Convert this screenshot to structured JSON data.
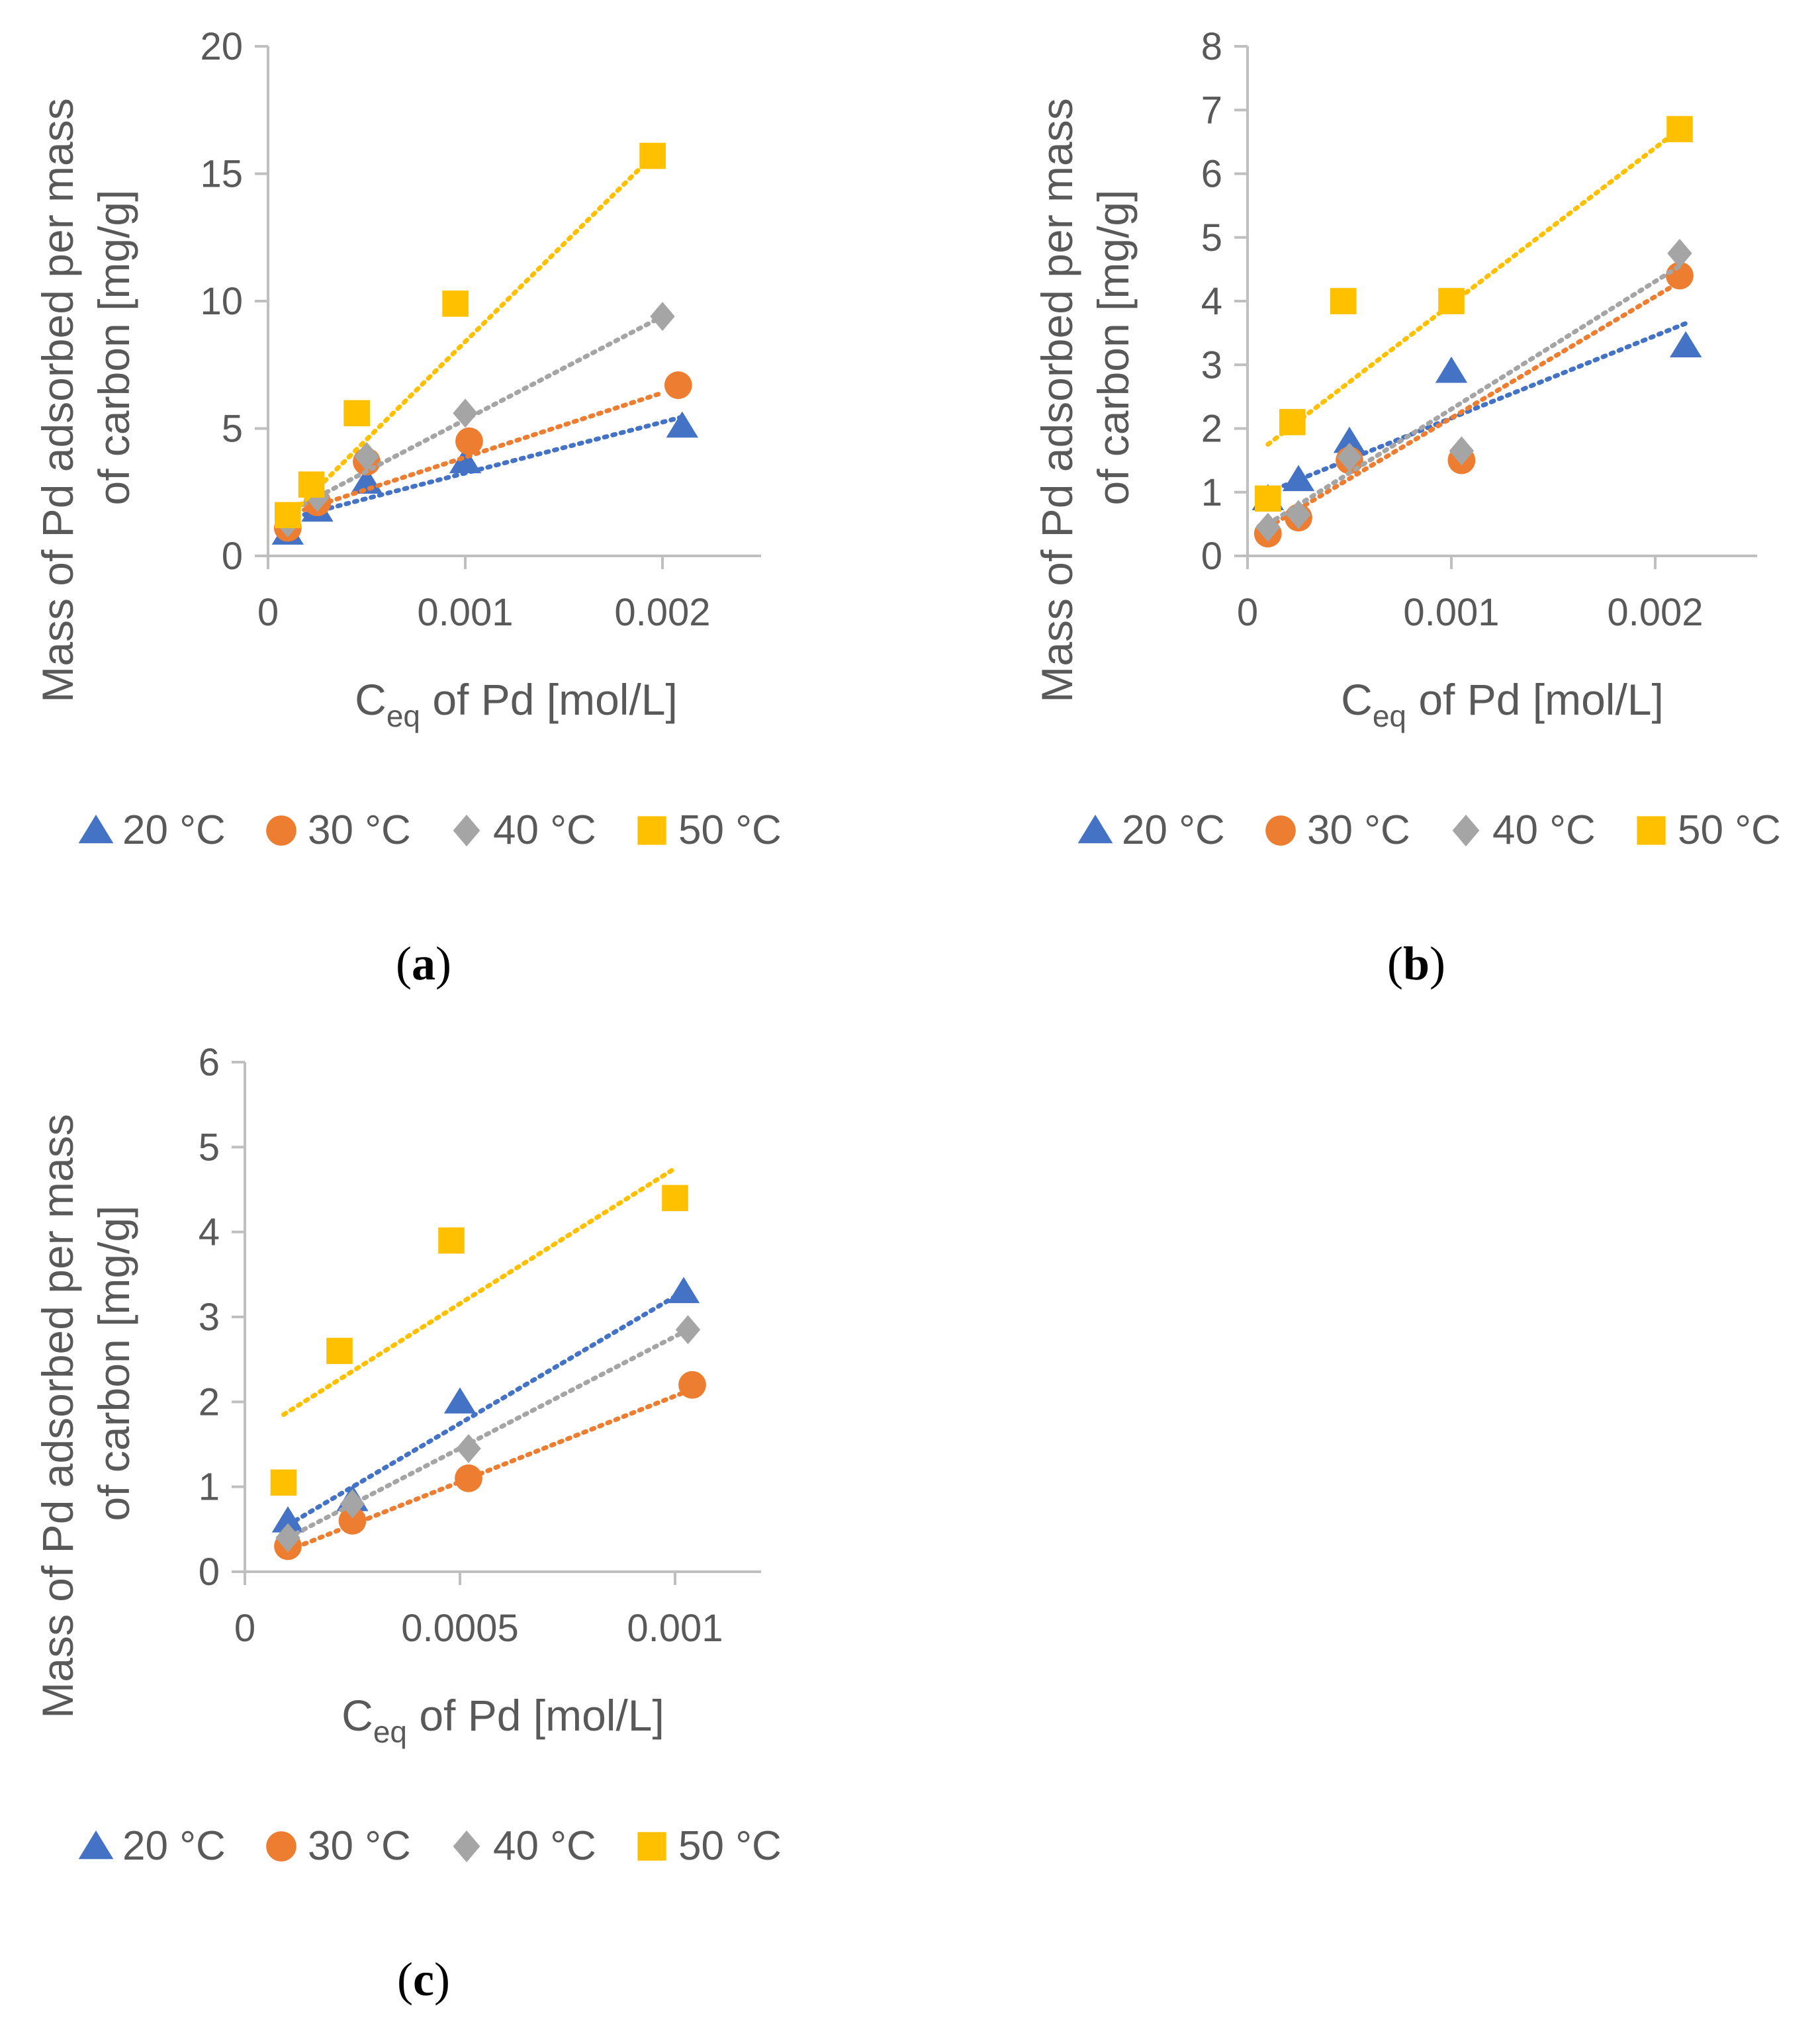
{
  "series_colors": {
    "20 °C": "#4472C4",
    "30 °C": "#ED7D31",
    "40 °C": "#A5A5A5",
    "50 °C": "#FFC000"
  },
  "series_markers": {
    "20 °C": "triangle",
    "30 °C": "circle",
    "40 °C": "diamond",
    "50 °C": "square"
  },
  "chart_data": [
    {
      "id": "a",
      "panel_label": "a",
      "type": "scatter",
      "xlabel_main": "C",
      "xlabel_sub": "eq",
      "xlabel_rest": " of Pd [mol/L]",
      "ylabel_line1": "Mass of Pd adsorbed per mass",
      "ylabel_line2": "of carbon [mg/g]",
      "xlim": [
        0,
        0.0025
      ],
      "ylim": [
        0,
        20
      ],
      "xticks": [
        0,
        0.001,
        0.002
      ],
      "xtick_labels": [
        "0",
        "0.001",
        "0.002"
      ],
      "yticks": [
        0,
        5,
        10,
        15,
        20
      ],
      "ytick_labels": [
        "0",
        "5",
        "10",
        "15",
        "20"
      ],
      "legend": [
        "20 °C",
        "30 °C",
        "40 °C",
        "50 °C"
      ],
      "series": [
        {
          "name": "20 °C",
          "x": [
            0.0001,
            0.00025,
            0.0005,
            0.001,
            0.0021
          ],
          "y": [
            0.9,
            1.8,
            2.9,
            3.7,
            5.1
          ],
          "trend": [
            0.0001,
            1.45,
            0.0021,
            5.45
          ]
        },
        {
          "name": "30 °C",
          "x": [
            0.0001,
            0.00025,
            0.0005,
            0.00102,
            0.00208
          ],
          "y": [
            1.1,
            2.1,
            3.7,
            4.5,
            6.7
          ],
          "trend": [
            0.0001,
            1.6,
            0.002,
            6.4
          ]
        },
        {
          "name": "40 °C",
          "x": [
            0.0001,
            0.00025,
            0.0005,
            0.001,
            0.002
          ],
          "y": [
            1.3,
            2.3,
            3.9,
            5.6,
            9.4
          ],
          "trend": [
            0.0001,
            1.7,
            0.002,
            9.4
          ]
        },
        {
          "name": "50 °C",
          "x": [
            0.0001,
            0.00022,
            0.00045,
            0.00095,
            0.00195
          ],
          "y": [
            1.6,
            2.8,
            5.6,
            9.9,
            15.7
          ],
          "trend": [
            0.0001,
            1.5,
            0.00195,
            15.7
          ]
        }
      ]
    },
    {
      "id": "b",
      "panel_label": "b",
      "type": "scatter",
      "xlabel_main": "C",
      "xlabel_sub": "eq",
      "xlabel_rest": " of Pd [mol/L]",
      "ylabel_line1": "Mass of Pd adsorbed per mass",
      "ylabel_line2": "of carbon [mg/g]",
      "xlim": [
        0,
        0.0025
      ],
      "ylim": [
        0,
        8
      ],
      "xticks": [
        0,
        0.001,
        0.002
      ],
      "xtick_labels": [
        "0",
        "0.001",
        "0.002"
      ],
      "yticks": [
        0,
        1,
        2,
        3,
        4,
        5,
        6,
        7,
        8
      ],
      "ytick_labels": [
        "0",
        "1",
        "2",
        "3",
        "4",
        "5",
        "6",
        "7",
        "8"
      ],
      "legend": [
        "20 °C",
        "30 °C",
        "40 °C",
        "50 °C"
      ],
      "series": [
        {
          "name": "20 °C",
          "x": [
            0.0001,
            0.00025,
            0.0005,
            0.001,
            0.00215
          ],
          "y": [
            0.9,
            1.2,
            1.8,
            2.9,
            3.3
          ],
          "trend": [
            0.0001,
            1.0,
            0.00215,
            3.65
          ]
        },
        {
          "name": "30 °C",
          "x": [
            0.0001,
            0.00025,
            0.0005,
            0.00105,
            0.00212
          ],
          "y": [
            0.35,
            0.6,
            1.5,
            1.5,
            4.4
          ],
          "trend": [
            0.0001,
            0.45,
            0.00212,
            4.3
          ]
        },
        {
          "name": "40 °C",
          "x": [
            0.0001,
            0.00025,
            0.0005,
            0.00105,
            0.00212
          ],
          "y": [
            0.45,
            0.65,
            1.55,
            1.65,
            4.75
          ],
          "trend": [
            0.0001,
            0.5,
            0.00212,
            4.55
          ]
        },
        {
          "name": "50 °C",
          "x": [
            0.0001,
            0.00022,
            0.00047,
            0.001,
            0.00212
          ],
          "y": [
            0.9,
            2.1,
            4.0,
            4.0,
            6.7
          ],
          "trend": [
            0.0001,
            1.75,
            0.00212,
            6.7
          ]
        }
      ]
    },
    {
      "id": "c",
      "panel_label": "c",
      "type": "scatter",
      "xlabel_main": "C",
      "xlabel_sub": "eq",
      "xlabel_rest": " of Pd [mol/L]",
      "ylabel_line1": "Mass of Pd adsorbed per mass",
      "ylabel_line2": "of carbon [mg/g]",
      "xlim": [
        0,
        0.0012
      ],
      "ylim": [
        0,
        6
      ],
      "xticks": [
        0,
        0.0005,
        0.001
      ],
      "xtick_labels": [
        "0",
        "0.0005",
        "0.001"
      ],
      "yticks": [
        0,
        1,
        2,
        3,
        4,
        5,
        6
      ],
      "ytick_labels": [
        "0",
        "1",
        "2",
        "3",
        "4",
        "5",
        "6"
      ],
      "legend": [
        "20 °C",
        "30 °C",
        "40 °C",
        "50 °C"
      ],
      "series": [
        {
          "name": "20 °C",
          "x": [
            0.0001,
            0.00025,
            0.0005,
            0.00102
          ],
          "y": [
            0.6,
            0.85,
            2.0,
            3.3
          ],
          "trend": [
            0.0001,
            0.55,
            0.00102,
            3.3
          ]
        },
        {
          "name": "30 °C",
          "x": [
            0.0001,
            0.00025,
            0.00052,
            0.00104
          ],
          "y": [
            0.3,
            0.6,
            1.1,
            2.2
          ],
          "trend": [
            0.0001,
            0.25,
            0.00104,
            2.15
          ]
        },
        {
          "name": "40 °C",
          "x": [
            0.0001,
            0.00025,
            0.00052,
            0.00103
          ],
          "y": [
            0.4,
            0.8,
            1.45,
            2.85
          ],
          "trend": [
            0.0001,
            0.4,
            0.00103,
            2.85
          ]
        },
        {
          "name": "50 °C",
          "x": [
            9e-05,
            0.00022,
            0.00048,
            0.001
          ],
          "y": [
            1.05,
            2.6,
            3.9,
            4.4
          ],
          "trend": [
            9e-05,
            1.85,
            0.001,
            4.75
          ]
        }
      ]
    }
  ]
}
